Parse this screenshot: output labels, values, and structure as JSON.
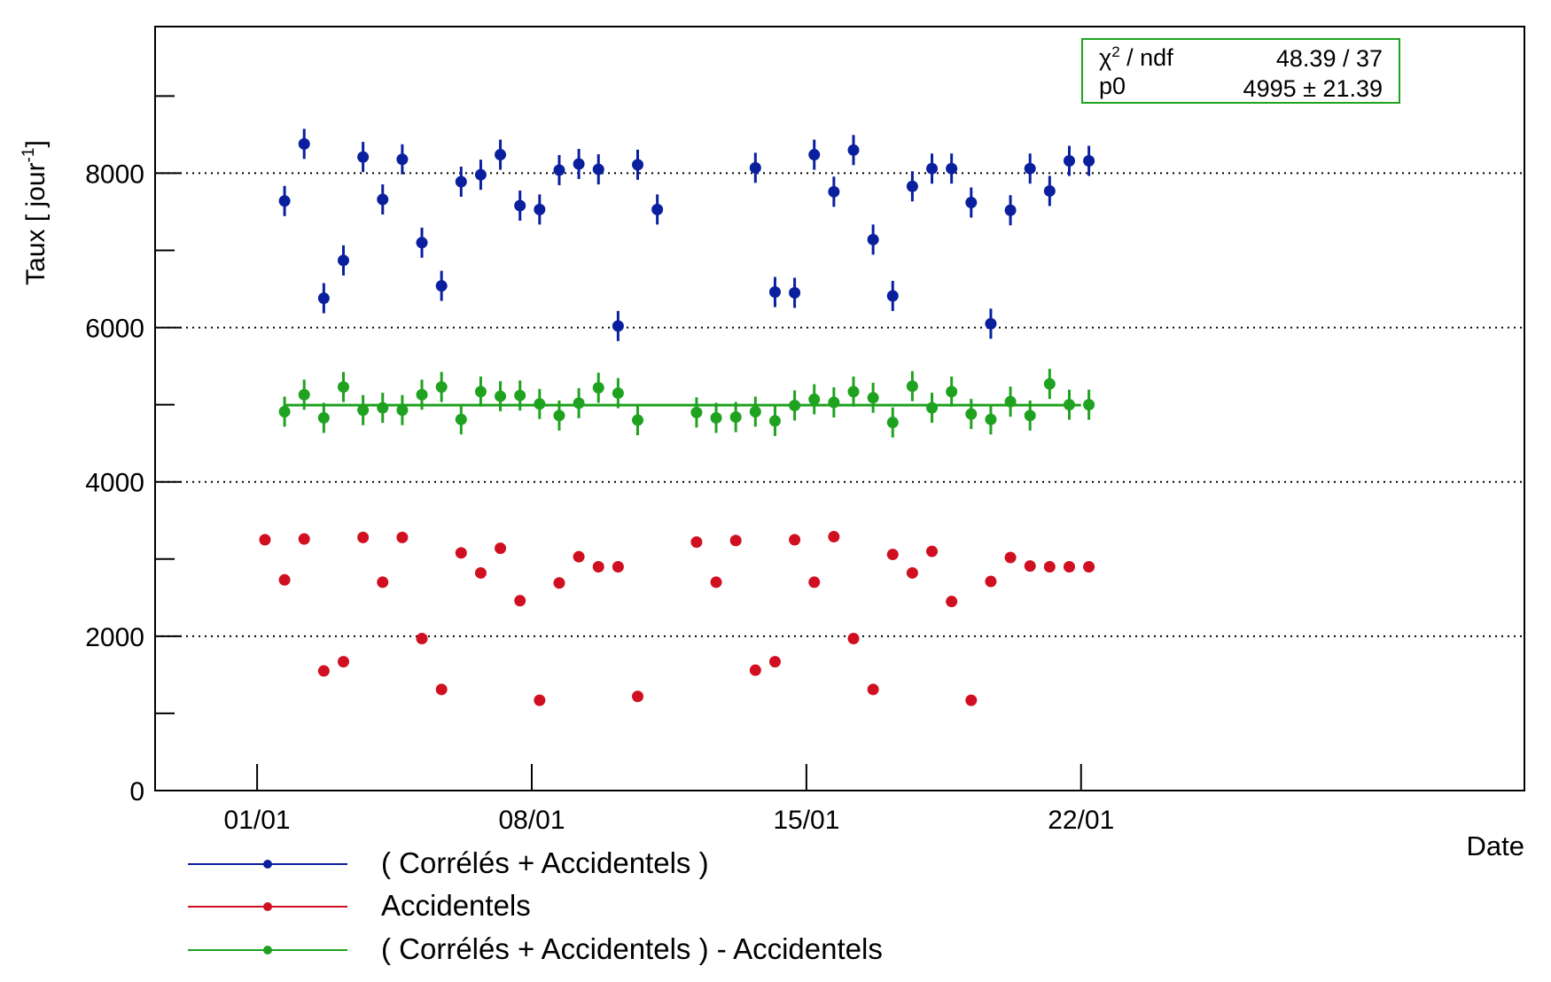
{
  "chart_data": {
    "type": "scatter",
    "ylabel_text": "Taux [ jour",
    "ylabel_sup": "-1",
    "ylabel_end": "]",
    "xlabel": "Date",
    "ylim": [
      0,
      9900
    ],
    "xlim": [
      -2.6,
      32.3
    ],
    "x_tick_labels": [
      "01/01",
      "08/01",
      "15/01",
      "22/01"
    ],
    "x_tick_values": [
      0,
      7,
      14,
      21
    ],
    "y_tick_labels": [
      "0",
      "2000",
      "4000",
      "6000",
      "8000"
    ],
    "y_tick_values": [
      0,
      2000,
      4000,
      6000,
      8000
    ],
    "y_minor_ticks": [
      1000,
      3000,
      5000,
      7000,
      9000
    ],
    "grid": "dotted horizontal lines at 2000, 4000, 6000, 8000",
    "series": [
      {
        "name": "( Corrélés + Accidentels )",
        "color": "#0a1f9e",
        "error_bars": true,
        "x": [
          0.7,
          1.2,
          1.7,
          2.2,
          2.7,
          3.2,
          3.7,
          4.2,
          4.7,
          5.2,
          5.7,
          6.2,
          6.7,
          7.2,
          7.7,
          8.2,
          8.7,
          9.2,
          9.7,
          10.2,
          12.7,
          13.2,
          13.7,
          14.2,
          14.7,
          15.2,
          15.7,
          16.2,
          16.7,
          17.2,
          17.7,
          18.2,
          18.7,
          19.2,
          19.7,
          20.2,
          20.7,
          21.2
        ],
        "y": [
          7640,
          8380,
          6380,
          6870,
          8210,
          7660,
          8180,
          7100,
          6540,
          7890,
          7980,
          8240,
          7580,
          7530,
          8040,
          8120,
          8050,
          6020,
          8110,
          7530,
          8070,
          6460,
          6450,
          8240,
          7760,
          8300,
          7140,
          6410,
          7830,
          8060,
          8060,
          7620,
          6050,
          7520,
          8060,
          7770,
          8160,
          8160
        ]
      },
      {
        "name": "Accidentels",
        "color": "#d01020",
        "error_bars": false,
        "x": [
          0.2,
          0.7,
          1.2,
          1.7,
          2.2,
          2.7,
          3.2,
          3.7,
          4.2,
          4.7,
          5.2,
          5.7,
          6.2,
          6.7,
          7.2,
          7.7,
          8.2,
          8.7,
          9.2,
          9.7,
          11.2,
          11.7,
          12.2,
          12.7,
          13.2,
          13.7,
          14.2,
          14.7,
          15.2,
          15.7,
          16.2,
          16.7,
          17.2,
          17.7,
          18.2,
          18.7,
          19.2,
          19.7,
          20.2,
          20.7,
          21.2
        ],
        "y": [
          3250,
          2730,
          3260,
          1550,
          1670,
          3280,
          2700,
          3280,
          1970,
          1310,
          3080,
          2820,
          3140,
          2460,
          1170,
          2690,
          3030,
          2900,
          2900,
          1220,
          3220,
          2700,
          3240,
          1560,
          1670,
          3250,
          2700,
          3290,
          1970,
          1310,
          3060,
          2820,
          3100,
          2450,
          1170,
          2710,
          3020,
          2910,
          2900,
          2900,
          2900
        ]
      },
      {
        "name": "( Corrélés + Accidentels ) - Accidentels",
        "color": "#1fa21f",
        "error_bars": true,
        "x": [
          0.7,
          1.2,
          1.7,
          2.2,
          2.7,
          3.2,
          3.7,
          4.2,
          4.7,
          5.2,
          5.7,
          6.2,
          6.7,
          7.2,
          7.7,
          8.2,
          8.7,
          9.2,
          9.7,
          11.2,
          11.7,
          12.2,
          12.7,
          13.2,
          13.7,
          14.2,
          14.7,
          15.2,
          15.7,
          16.2,
          16.7,
          17.2,
          17.7,
          18.2,
          18.7,
          19.2,
          19.7,
          20.2,
          20.7,
          21.2
        ],
        "y": [
          4910,
          5130,
          4830,
          5230,
          4930,
          4960,
          4930,
          5130,
          5230,
          4810,
          5170,
          5110,
          5120,
          5010,
          4860,
          5020,
          5220,
          5150,
          4800,
          4900,
          4830,
          4840,
          4910,
          4790,
          4990,
          5070,
          5030,
          5170,
          5090,
          4770,
          5240,
          4960,
          5170,
          4880,
          4810,
          5040,
          4860,
          5270,
          5000,
          5000
        ]
      }
    ],
    "fit": {
      "label_chi": "χ",
      "label_chi_sup": "2",
      "label_chi_rest": " / ndf",
      "chi_value": "48.39 / 37",
      "label_p0": "p0",
      "p0_value": "4995 ± 21.39",
      "value": 4995,
      "x_range": [
        0.7,
        21.0
      ],
      "color": "#1fa21f"
    },
    "legend_position": "bottom-left, below plot"
  }
}
